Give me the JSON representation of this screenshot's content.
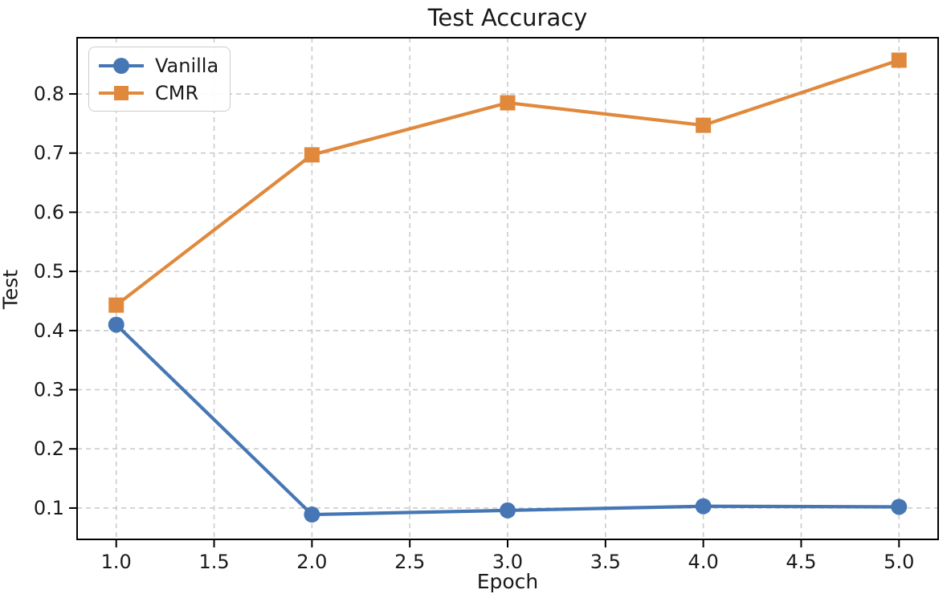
{
  "chart_data": {
    "type": "line",
    "title": "Test Accuracy",
    "xlabel": "Epoch",
    "ylabel": "Test",
    "x": [
      1.0,
      2.0,
      3.0,
      4.0,
      5.0
    ],
    "series": [
      {
        "name": "Vanilla",
        "marker": "circle",
        "color": "#4677b4",
        "values": [
          0.41,
          0.089,
          0.096,
          0.103,
          0.102
        ]
      },
      {
        "name": "CMR",
        "marker": "square",
        "color": "#e0893c",
        "values": [
          0.443,
          0.697,
          0.785,
          0.747,
          0.857
        ]
      }
    ],
    "xlim": [
      0.8,
      5.2
    ],
    "ylim": [
      0.047,
      0.895
    ],
    "xticks": [
      1.0,
      1.5,
      2.0,
      2.5,
      3.0,
      3.5,
      4.0,
      4.5,
      5.0
    ],
    "yticks": [
      0.1,
      0.2,
      0.3,
      0.4,
      0.5,
      0.6,
      0.7,
      0.8
    ],
    "grid": true,
    "grid_style": "dashed",
    "legend_position": "upper left",
    "colors": {
      "grid": "#cbcbcb",
      "spine": "#000000",
      "text": "#1a1a1a",
      "background": "#ffffff"
    }
  }
}
